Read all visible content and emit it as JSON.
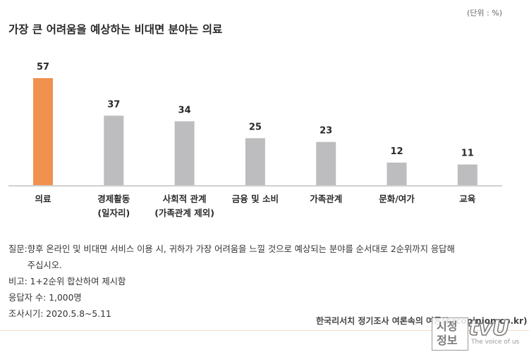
{
  "header": {
    "title": "가장 큰 어려움을 예상하는 비대면 분야는 의료",
    "unit": "(단위 : %)"
  },
  "colors": {
    "highlight": "#F0914F",
    "bar": "#BDBDC0",
    "axis": "#A0A0A0"
  },
  "chart_data": {
    "type": "bar",
    "categories": [
      [
        "의료"
      ],
      [
        "경제활동",
        "(일자리)"
      ],
      [
        "사회적 관계",
        "(가족관계 제외)"
      ],
      [
        "금융 및 소비"
      ],
      [
        "가족관계"
      ],
      [
        "문화/여가"
      ],
      [
        "교육"
      ]
    ],
    "values": [
      57,
      37,
      34,
      25,
      23,
      12,
      11
    ],
    "highlight_index": 0,
    "ylim": [
      0,
      60
    ]
  },
  "notes": {
    "question_label": "질문:",
    "question_text": "향후 온라인 및 비대면 서비스 이용 시, 귀하가 가장 어려움을 느낄 것으로 예상되는 분야를 순서대로 2순위까지 응답해 주십시오.",
    "remark": "비고: 1+2순위 합산하여 제시함",
    "respondents": "응답자 수: 1,000명",
    "period": "조사시기: 2020.5.8~5.11"
  },
  "source": "한국리서치 정기조사 여론속의 여론(hrcopinion.co.kr)",
  "watermark": {
    "line1": "시정",
    "line2": "정보",
    "brand": "tvU",
    "tagline": "The voice of us"
  }
}
